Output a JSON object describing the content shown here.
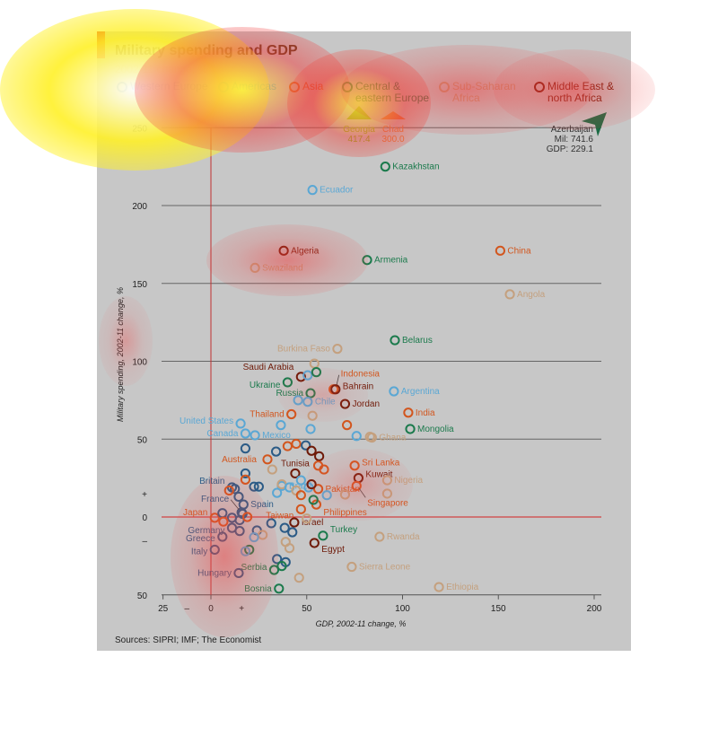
{
  "chart_data": {
    "type": "scatter",
    "title": "Military spending and GDP",
    "subtitle": "2002-11 change, %",
    "xlabel": "GDP, 2002-11 change, %",
    "ylabel": "Military spending, 2002-11 change, %",
    "xlim": [
      -25,
      200
    ],
    "ylim": [
      -50,
      250
    ],
    "x_ticks": [
      "25",
      "–",
      "0",
      "+",
      "50",
      "100",
      "150",
      "200"
    ],
    "y_ticks": [
      "250",
      "200",
      "150",
      "100",
      "50",
      "+",
      "0",
      "–",
      "50"
    ],
    "grid": true,
    "legend": [
      {
        "name": "Western Europe",
        "color": "#2b5b86"
      },
      {
        "name": "Americas",
        "color": "#5aa7d4"
      },
      {
        "name": "Asia",
        "color": "#d2561e"
      },
      {
        "name": "Central & eastern Europe",
        "color": "#1b7a4c"
      },
      {
        "name": "Sub-Saharan Africa",
        "color": "#c4a07e"
      },
      {
        "name": "Middle East & north Africa",
        "color": "#6e1a08"
      }
    ],
    "off_chart": [
      {
        "label": "Georgia",
        "value": "417.4",
        "color": "#8ab21e"
      },
      {
        "label": "Chad",
        "value": "300.0",
        "color": "#e07a3a"
      },
      {
        "label": "Azerbaijan",
        "mil": "Mil: 741.6",
        "gdp": "GDP: 229.1",
        "color": "#1b6b44"
      }
    ],
    "points": [
      {
        "label": "Kazakhstan",
        "group": 3,
        "x": 91,
        "y": 225
      },
      {
        "label": "Ecuador",
        "group": 1,
        "x": 53,
        "y": 210
      },
      {
        "label": "Algeria",
        "group": 5,
        "x": 38,
        "y": 171
      },
      {
        "label": "Armenia",
        "group": 3,
        "x": 81.5,
        "y": 165
      },
      {
        "label": "China",
        "group": 2,
        "x": 151,
        "y": 171
      },
      {
        "label": "Swaziland",
        "group": 4,
        "x": 23,
        "y": 160
      },
      {
        "label": "Angola",
        "group": 4,
        "x": 156,
        "y": 143
      },
      {
        "label": "Belarus",
        "group": 3,
        "x": 96,
        "y": 113.5
      },
      {
        "label": "Burkina Faso",
        "group": 4,
        "x": 66,
        "y": 108
      },
      {
        "label": "Saudi Arabia",
        "group": 5,
        "x": 47,
        "y": 90
      },
      {
        "label": "Ukraine",
        "group": 3,
        "x": 40,
        "y": 86.5
      },
      {
        "label": "Indonesia",
        "group": 2,
        "x": 64,
        "y": 82
      },
      {
        "label": "Bahrain",
        "group": 5,
        "x": 65,
        "y": 82
      },
      {
        "label": "Russia",
        "group": 3,
        "x": 52,
        "y": 79.5
      },
      {
        "label": "Chile",
        "group": 1,
        "x": 50.5,
        "y": 74
      },
      {
        "label": "Jordan",
        "group": 5,
        "x": 70,
        "y": 72.6
      },
      {
        "label": "Argentina",
        "group": 1,
        "x": 95.5,
        "y": 80.7
      },
      {
        "label": "Thailand",
        "group": 2,
        "x": 42,
        "y": 66
      },
      {
        "label": "India",
        "group": 2,
        "x": 103,
        "y": 67
      },
      {
        "label": "Mongolia",
        "group": 3,
        "x": 104,
        "y": 56.5
      },
      {
        "label": "Ghana",
        "group": 4,
        "x": 84,
        "y": 51
      },
      {
        "label": "United States",
        "group": 1,
        "x": 15.5,
        "y": 60
      },
      {
        "label": "Canada",
        "group": 1,
        "x": 18,
        "y": 53.6
      },
      {
        "label": "Mexico",
        "group": 1,
        "x": 23,
        "y": 52.5
      },
      {
        "label": "Australia",
        "group": 2,
        "x": 29.5,
        "y": 37
      },
      {
        "label": "Tunisia",
        "group": 5,
        "x": 44,
        "y": 28
      },
      {
        "label": "Sri Lanka",
        "group": 2,
        "x": 75,
        "y": 33
      },
      {
        "label": "Kuwait",
        "group": 5,
        "x": 77,
        "y": 25
      },
      {
        "label": "Nigeria",
        "group": 4,
        "x": 92,
        "y": 23.6
      },
      {
        "label": "Brazil",
        "group": 1,
        "x": 37,
        "y": 20
      },
      {
        "label": "Pakistan",
        "group": 2,
        "x": 56,
        "y": 18
      },
      {
        "label": "Britain",
        "group": 0,
        "x": 11,
        "y": 19
      },
      {
        "label": "Singapore",
        "group": 2,
        "x": 76,
        "y": 20
      },
      {
        "label": "Spain",
        "group": 0,
        "x": 17,
        "y": 8
      },
      {
        "label": "Taiwan",
        "group": 2,
        "x": 47,
        "y": 5
      },
      {
        "label": "Philippines",
        "group": 2,
        "x": 55,
        "y": 8
      },
      {
        "label": "France",
        "group": 0,
        "x": 16,
        "y": 3
      },
      {
        "label": "Japan",
        "group": 2,
        "x": 2,
        "y": -0.5
      },
      {
        "label": "Israel",
        "group": 5,
        "x": 43.5,
        "y": -3.5
      },
      {
        "label": "Germany",
        "group": 0,
        "x": 11,
        "y": -7
      },
      {
        "label": "Turkey",
        "group": 3,
        "x": 58.5,
        "y": -12
      },
      {
        "label": "Rwanda",
        "group": 4,
        "x": 88,
        "y": -12.7
      },
      {
        "label": "Greece",
        "group": 0,
        "x": 6,
        "y": -12.7
      },
      {
        "label": "Egypt",
        "group": 5,
        "x": 54,
        "y": -16.7
      },
      {
        "label": "Italy",
        "group": 0,
        "x": 2,
        "y": -21
      },
      {
        "label": "Serbia",
        "group": 3,
        "x": 33,
        "y": -34
      },
      {
        "label": "Sierra Leone",
        "group": 4,
        "x": 73.5,
        "y": -32
      },
      {
        "label": "Hungary",
        "group": 0,
        "x": 14.5,
        "y": -36
      },
      {
        "label": "Ethiopia",
        "group": 4,
        "x": 119,
        "y": -45
      },
      {
        "label": "Bosnia",
        "group": 3,
        "x": 35.5,
        "y": -46
      },
      {
        "label": "",
        "group": 4,
        "x": 54,
        "y": 98.5
      },
      {
        "label": "",
        "group": 1,
        "x": 50.5,
        "y": 91
      },
      {
        "label": "",
        "group": 3,
        "x": 55,
        "y": 93
      },
      {
        "label": "",
        "group": 1,
        "x": 45.5,
        "y": 75
      },
      {
        "label": "",
        "group": 4,
        "x": 53,
        "y": 65
      },
      {
        "label": "",
        "group": 1,
        "x": 36.5,
        "y": 59
      },
      {
        "label": "",
        "group": 1,
        "x": 52,
        "y": 56.5
      },
      {
        "label": "",
        "group": 2,
        "x": 71,
        "y": 59
      },
      {
        "label": "",
        "group": 1,
        "x": 76,
        "y": 52
      },
      {
        "label": "",
        "group": 4,
        "x": 83,
        "y": 51.5
      },
      {
        "label": "",
        "group": 0,
        "x": 18,
        "y": 44
      },
      {
        "label": "",
        "group": 0,
        "x": 34,
        "y": 42
      },
      {
        "label": "",
        "group": 2,
        "x": 40,
        "y": 45.5
      },
      {
        "label": "",
        "group": 2,
        "x": 44.5,
        "y": 47
      },
      {
        "label": "",
        "group": 0,
        "x": 49.5,
        "y": 46
      },
      {
        "label": "",
        "group": 5,
        "x": 52.5,
        "y": 42.5
      },
      {
        "label": "",
        "group": 5,
        "x": 56.5,
        "y": 39
      },
      {
        "label": "",
        "group": 2,
        "x": 56,
        "y": 33
      },
      {
        "label": "",
        "group": 2,
        "x": 59,
        "y": 30.5
      },
      {
        "label": "",
        "group": 4,
        "x": 32,
        "y": 30.5
      },
      {
        "label": "",
        "group": 0,
        "x": 18,
        "y": 28
      },
      {
        "label": "",
        "group": 2,
        "x": 18,
        "y": 24
      },
      {
        "label": "",
        "group": 0,
        "x": 22.5,
        "y": 19.5
      },
      {
        "label": "",
        "group": 0,
        "x": 25,
        "y": 19.5
      },
      {
        "label": "",
        "group": 0,
        "x": 12.5,
        "y": 18
      },
      {
        "label": "",
        "group": 2,
        "x": 9.5,
        "y": 17
      },
      {
        "label": "",
        "group": 0,
        "x": 14.5,
        "y": 13
      },
      {
        "label": "",
        "group": 4,
        "x": 37,
        "y": 21
      },
      {
        "label": "",
        "group": 1,
        "x": 41,
        "y": 19
      },
      {
        "label": "",
        "group": 1,
        "x": 47,
        "y": 23.6
      },
      {
        "label": "",
        "group": 1,
        "x": 51,
        "y": 19
      },
      {
        "label": "",
        "group": 5,
        "x": 52.5,
        "y": 21
      },
      {
        "label": "",
        "group": 1,
        "x": 34.5,
        "y": 15.5
      },
      {
        "label": "",
        "group": 4,
        "x": 44.5,
        "y": 17
      },
      {
        "label": "",
        "group": 2,
        "x": 47,
        "y": 14
      },
      {
        "label": "",
        "group": 3,
        "x": 53.5,
        "y": 11
      },
      {
        "label": "",
        "group": 1,
        "x": 60.5,
        "y": 14
      },
      {
        "label": "",
        "group": 4,
        "x": 70,
        "y": 14.4
      },
      {
        "label": "",
        "group": 4,
        "x": 92,
        "y": 15
      },
      {
        "label": "",
        "group": 4,
        "x": 50,
        "y": -1
      },
      {
        "label": "",
        "group": 0,
        "x": 31.5,
        "y": -4
      },
      {
        "label": "",
        "group": 0,
        "x": 38.5,
        "y": -7
      },
      {
        "label": "",
        "group": 0,
        "x": 42.5,
        "y": -9.8
      },
      {
        "label": "",
        "group": 0,
        "x": 24,
        "y": -8.6
      },
      {
        "label": "",
        "group": 4,
        "x": 27,
        "y": -11.5
      },
      {
        "label": "",
        "group": 1,
        "x": 22.5,
        "y": -13
      },
      {
        "label": "",
        "group": 4,
        "x": 39,
        "y": -16
      },
      {
        "label": "",
        "group": 4,
        "x": 41,
        "y": -20
      },
      {
        "label": "",
        "group": 3,
        "x": 20,
        "y": -21
      },
      {
        "label": "",
        "group": 1,
        "x": 18,
        "y": -22
      },
      {
        "label": "",
        "group": 0,
        "x": 34.5,
        "y": -27
      },
      {
        "label": "",
        "group": 0,
        "x": 39,
        "y": -29
      },
      {
        "label": "",
        "group": 3,
        "x": 37,
        "y": -31.5
      },
      {
        "label": "",
        "group": 4,
        "x": 46,
        "y": -39
      },
      {
        "label": "",
        "group": 0,
        "x": 6,
        "y": 2.5
      },
      {
        "label": "",
        "group": 0,
        "x": 11,
        "y": -0.5
      },
      {
        "label": "",
        "group": 0,
        "x": 15,
        "y": -2
      },
      {
        "label": "",
        "group": 0,
        "x": 16.5,
        "y": 2
      },
      {
        "label": "",
        "group": 2,
        "x": 19,
        "y": 0
      },
      {
        "label": "",
        "group": 2,
        "x": 6.5,
        "y": -3
      },
      {
        "label": "",
        "group": 0,
        "x": 15,
        "y": -9
      }
    ],
    "source": "Sources: SIPRI; IMF; The Economist"
  }
}
